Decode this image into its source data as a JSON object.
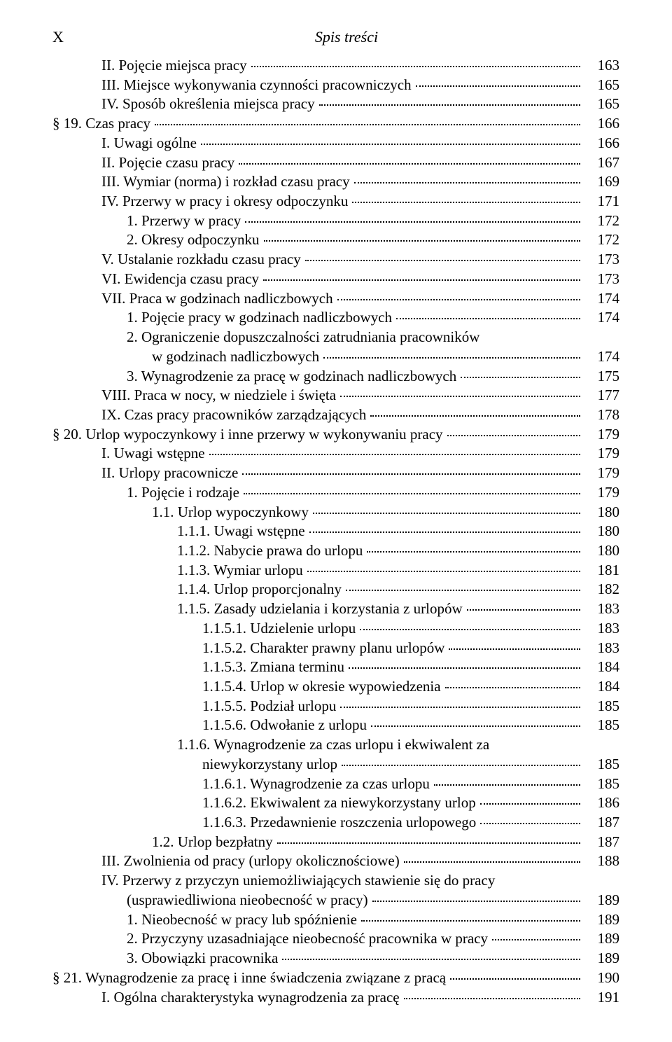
{
  "page_number_header": "X",
  "header_title": "Spis treści",
  "entries": [
    {
      "indent": 2,
      "label": "II. Pojęcie miejsca pracy",
      "page": "163"
    },
    {
      "indent": 2,
      "label": "III. Miejsce wykonywania czynności pracowniczych",
      "page": "165"
    },
    {
      "indent": 2,
      "label": "IV. Sposób określenia miejsca pracy",
      "page": "165"
    },
    {
      "indent": 0,
      "label": "§ 19. Czas pracy",
      "page": "166"
    },
    {
      "indent": 2,
      "label": "I. Uwagi ogólne",
      "page": "166"
    },
    {
      "indent": 2,
      "label": "II. Pojęcie czasu pracy",
      "page": "167"
    },
    {
      "indent": 2,
      "label": "III. Wymiar (norma) i rozkład czasu pracy",
      "page": "169"
    },
    {
      "indent": 2,
      "label": "IV. Przerwy w pracy i okresy odpoczynku",
      "page": "171"
    },
    {
      "indent": 3,
      "label": "1. Przerwy w pracy",
      "page": "172"
    },
    {
      "indent": 3,
      "label": "2. Okresy odpoczynku",
      "page": "172"
    },
    {
      "indent": 2,
      "label": "V. Ustalanie rozkładu czasu pracy",
      "page": "173"
    },
    {
      "indent": 2,
      "label": "VI. Ewidencja czasu pracy",
      "page": "173"
    },
    {
      "indent": 2,
      "label": "VII. Praca w godzinach nadliczbowych",
      "page": "174"
    },
    {
      "indent": 3,
      "label": "1. Pojęcie pracy w godzinach nadliczbowych",
      "page": "174"
    },
    {
      "indent": 3,
      "label_line1": "2. Ograniczenie dopuszczalności zatrudniania pracowników",
      "label_line2_indent": 4,
      "label_line2": "w godzinach nadliczbowych",
      "page": "174",
      "wrap": true
    },
    {
      "indent": 3,
      "label": "3. Wynagrodzenie za pracę w godzinach nadliczbowych",
      "page": "175"
    },
    {
      "indent": 2,
      "label": "VIII. Praca w nocy, w niedziele i święta",
      "page": "177"
    },
    {
      "indent": 2,
      "label": "IX. Czas pracy pracowników zarządzających",
      "page": "178"
    },
    {
      "indent": 0,
      "label": "§ 20. Urlop wypoczynkowy i inne przerwy w wykonywaniu pracy",
      "page": "179"
    },
    {
      "indent": 2,
      "label": "I. Uwagi wstępne",
      "page": "179"
    },
    {
      "indent": 2,
      "label": "II. Urlopy pracownicze",
      "page": "179"
    },
    {
      "indent": 3,
      "label": "1. Pojęcie i rodzaje",
      "page": "179"
    },
    {
      "indent": 4,
      "label": "1.1. Urlop wypoczynkowy",
      "page": "180"
    },
    {
      "indent": 5,
      "label": "1.1.1. Uwagi wstępne",
      "page": "180"
    },
    {
      "indent": 5,
      "label": "1.1.2. Nabycie prawa do urlopu",
      "page": "180"
    },
    {
      "indent": 5,
      "label": "1.1.3. Wymiar urlopu",
      "page": "181"
    },
    {
      "indent": 5,
      "label": "1.1.4. Urlop proporcjonalny",
      "page": "182"
    },
    {
      "indent": 5,
      "label": "1.1.5. Zasady udzielania i korzystania z urlopów",
      "page": "183"
    },
    {
      "indent": 6,
      "label": "1.1.5.1. Udzielenie urlopu",
      "page": "183"
    },
    {
      "indent": 6,
      "label": "1.1.5.2. Charakter prawny planu urlopów",
      "page": "183"
    },
    {
      "indent": 6,
      "label": "1.1.5.3. Zmiana terminu",
      "page": "184"
    },
    {
      "indent": 6,
      "label": "1.1.5.4. Urlop w okresie wypowiedzenia",
      "page": "184"
    },
    {
      "indent": 6,
      "label": "1.1.5.5. Podział urlopu",
      "page": "185"
    },
    {
      "indent": 6,
      "label": "1.1.5.6. Odwołanie z urlopu",
      "page": "185"
    },
    {
      "indent": 5,
      "label_line1": "1.1.6. Wynagrodzenie za czas urlopu i ekwiwalent za",
      "label_line2_indent": 6,
      "label_line2": "niewykorzystany urlop",
      "page": "185",
      "wrap": true
    },
    {
      "indent": 6,
      "label": "1.1.6.1. Wynagrodzenie za czas urlopu",
      "page": "185"
    },
    {
      "indent": 6,
      "label": "1.1.6.2. Ekwiwalent za niewykorzystany urlop",
      "page": "186"
    },
    {
      "indent": 6,
      "label": "1.1.6.3. Przedawnienie roszczenia urlopowego",
      "page": "187"
    },
    {
      "indent": 4,
      "label": "1.2. Urlop bezpłatny",
      "page": "187"
    },
    {
      "indent": 2,
      "label": "III. Zwolnienia od pracy (urlopy okolicznościowe)",
      "page": "188"
    },
    {
      "indent": 2,
      "label_line1": "IV. Przerwy z przyczyn uniemożliwiających stawienie się do pracy",
      "label_line2_indent": 3,
      "label_line2": "(usprawiedliwiona nieobecność w pracy)",
      "page": "189",
      "wrap": true
    },
    {
      "indent": 3,
      "label": "1. Nieobecność w pracy lub spóźnienie",
      "page": "189"
    },
    {
      "indent": 3,
      "label": "2. Przyczyny uzasadniające nieobecność pracownika w pracy",
      "page": "189"
    },
    {
      "indent": 3,
      "label": "3. Obowiązki pracownika",
      "page": "189"
    },
    {
      "indent": 0,
      "label": "§ 21. Wynagrodzenie za pracę i inne świadczenia związane z pracą",
      "page": "190"
    },
    {
      "indent": 2,
      "label": "I. Ogólna charakterystyka wynagrodzenia za pracę",
      "page": "191"
    }
  ]
}
